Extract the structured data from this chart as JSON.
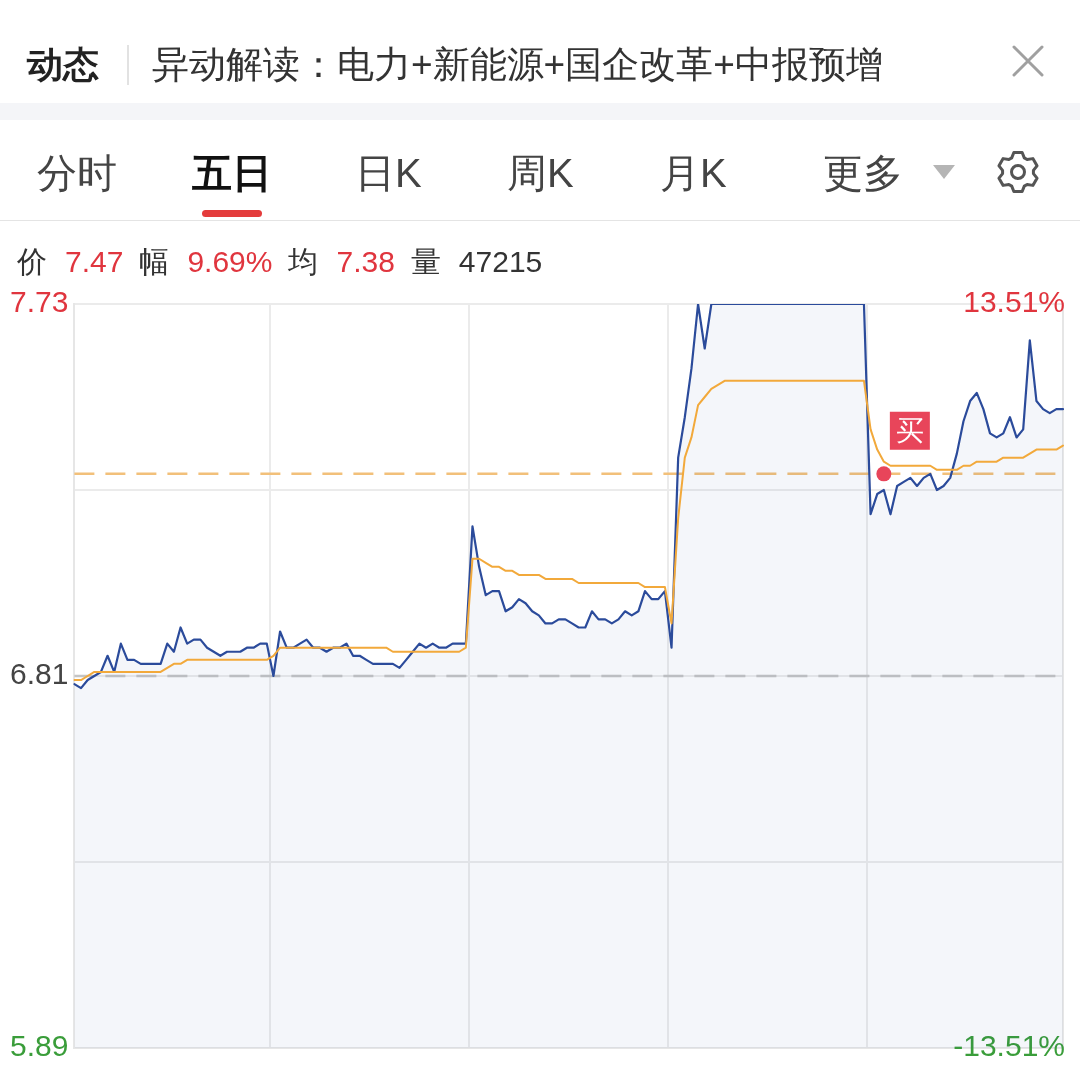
{
  "chart_data": {
    "type": "area",
    "title": "异动解读：电力+新能源+国企改革+中报预增",
    "annotations": [
      "动态",
      "分时",
      "五日",
      "日K",
      "周K",
      "月K",
      "更多",
      "价",
      "7.47",
      "幅",
      "9.69%",
      "均",
      "7.38",
      "量",
      "47215"
    ],
    "categories": [
      null,
      null,
      null,
      null,
      null,
      null,
      null,
      null,
      null,
      null,
      null,
      null,
      null,
      null,
      null,
      null,
      null,
      null,
      null,
      null,
      null,
      null,
      null,
      null,
      null,
      null,
      null,
      null,
      null,
      null,
      null,
      null,
      null,
      null,
      null,
      null,
      null,
      null,
      null,
      null,
      null,
      null,
      null,
      null,
      null,
      null,
      null,
      null,
      null,
      null,
      null,
      null,
      null,
      null,
      null,
      null,
      null,
      null,
      null,
      null,
      null,
      null,
      null,
      null,
      null,
      null,
      null,
      null,
      null,
      null,
      null,
      null,
      null,
      null,
      null,
      null,
      null,
      null,
      null,
      null,
      null,
      null,
      null,
      null,
      null,
      null,
      null,
      null,
      null,
      null,
      null,
      null,
      null,
      null,
      null,
      null,
      null,
      null,
      null,
      null,
      null,
      null,
      null,
      null,
      null,
      null,
      null,
      null,
      null,
      null,
      null,
      null,
      null,
      null,
      null,
      null,
      null,
      null,
      null,
      null,
      null,
      null,
      null,
      null,
      null,
      null,
      null,
      null,
      null,
      null,
      null,
      null,
      null,
      null,
      null,
      null,
      null,
      null,
      null,
      null,
      null,
      null,
      null,
      null,
      null,
      null,
      null,
      null,
      null,
      null
    ],
    "series": [
      {
        "color": "#2b4b9b",
        "values": [
          6.79,
          6.78,
          6.8,
          6.81,
          6.82,
          6.86,
          6.82,
          6.89,
          6.85,
          6.85,
          6.84,
          6.84,
          6.84,
          6.84,
          6.89,
          6.87,
          6.93,
          6.89,
          6.9,
          6.9,
          6.88,
          6.87,
          6.86,
          6.87,
          6.87,
          6.87,
          6.88,
          6.88,
          6.89,
          6.89,
          6.81,
          6.92,
          6.88,
          6.88,
          6.89,
          6.9,
          6.88,
          6.88,
          6.87,
          6.88,
          6.88,
          6.89,
          6.86,
          6.86,
          6.85,
          6.84,
          6.84,
          6.84,
          6.84,
          6.83,
          6.85,
          6.87,
          6.89,
          6.88,
          6.89,
          6.88,
          6.88,
          6.89,
          6.89,
          6.89,
          7.18,
          7.08,
          7.01,
          7.02,
          7.02,
          6.97,
          6.98,
          7.0,
          6.99,
          6.97,
          6.96,
          6.94,
          6.94,
          6.95,
          6.95,
          6.94,
          6.93,
          6.93,
          6.97,
          6.95,
          6.95,
          6.94,
          6.95,
          6.97,
          6.96,
          6.97,
          7.02,
          7.0,
          7.0,
          7.02,
          6.88,
          7.35,
          7.45,
          7.57,
          7.73,
          7.62,
          7.73,
          7.73,
          7.73,
          7.73,
          7.73,
          7.73,
          7.73,
          7.73,
          7.73,
          7.73,
          7.73,
          7.73,
          7.73,
          7.73,
          7.73,
          7.73,
          7.73,
          7.73,
          7.73,
          7.73,
          7.73,
          7.73,
          7.73,
          7.73,
          7.21,
          7.26,
          7.27,
          7.21,
          7.28,
          7.29,
          7.3,
          7.28,
          7.3,
          7.31,
          7.27,
          7.28,
          7.3,
          7.36,
          7.44,
          7.49,
          7.51,
          7.47,
          7.41,
          7.4,
          7.41,
          7.45,
          7.4,
          7.42,
          7.64,
          7.49,
          7.47,
          7.46,
          7.47,
          7.47
        ]
      },
      {
        "type": "line",
        "color": "#f2a93b",
        "values": [
          6.8,
          6.8,
          6.81,
          6.82,
          6.82,
          6.82,
          6.82,
          6.82,
          6.82,
          6.82,
          6.82,
          6.82,
          6.82,
          6.82,
          6.83,
          6.84,
          6.84,
          6.85,
          6.85,
          6.85,
          6.85,
          6.85,
          6.85,
          6.85,
          6.85,
          6.85,
          6.85,
          6.85,
          6.85,
          6.85,
          6.86,
          6.88,
          6.88,
          6.88,
          6.88,
          6.88,
          6.88,
          6.88,
          6.88,
          6.88,
          6.88,
          6.88,
          6.88,
          6.88,
          6.88,
          6.88,
          6.88,
          6.88,
          6.87,
          6.87,
          6.87,
          6.87,
          6.87,
          6.87,
          6.87,
          6.87,
          6.87,
          6.87,
          6.87,
          6.88,
          7.1,
          7.1,
          7.09,
          7.08,
          7.08,
          7.07,
          7.07,
          7.06,
          7.06,
          7.06,
          7.06,
          7.05,
          7.05,
          7.05,
          7.05,
          7.05,
          7.04,
          7.04,
          7.04,
          7.04,
          7.04,
          7.04,
          7.04,
          7.04,
          7.04,
          7.04,
          7.03,
          7.03,
          7.03,
          7.03,
          6.94,
          7.2,
          7.35,
          7.4,
          7.48,
          7.5,
          7.52,
          7.53,
          7.54,
          7.54,
          7.54,
          7.54,
          7.54,
          7.54,
          7.54,
          7.54,
          7.54,
          7.54,
          7.54,
          7.54,
          7.54,
          7.54,
          7.54,
          7.54,
          7.54,
          7.54,
          7.54,
          7.54,
          7.54,
          7.54,
          7.42,
          7.37,
          7.34,
          7.33,
          7.33,
          7.33,
          7.33,
          7.33,
          7.33,
          7.33,
          7.32,
          7.32,
          7.32,
          7.32,
          7.33,
          7.33,
          7.34,
          7.34,
          7.34,
          7.34,
          7.35,
          7.35,
          7.35,
          7.35,
          7.36,
          7.37,
          7.37,
          7.37,
          7.37,
          7.38
        ]
      },
      {
        "type": "scatter",
        "name": "买",
        "color": "#e8455a",
        "marker": "circle",
        "values": [
          null,
          null,
          null,
          null,
          null,
          null,
          null,
          null,
          null,
          null,
          null,
          null,
          null,
          null,
          null,
          null,
          null,
          null,
          null,
          null,
          null,
          null,
          null,
          null,
          null,
          null,
          null,
          null,
          null,
          null,
          null,
          null,
          null,
          null,
          null,
          null,
          null,
          null,
          null,
          null,
          null,
          null,
          null,
          null,
          null,
          null,
          null,
          null,
          null,
          null,
          null,
          null,
          null,
          null,
          null,
          null,
          null,
          null,
          null,
          null,
          null,
          null,
          null,
          null,
          null,
          null,
          null,
          null,
          null,
          null,
          null,
          null,
          null,
          null,
          null,
          null,
          null,
          null,
          null,
          null,
          null,
          null,
          null,
          null,
          null,
          null,
          null,
          null,
          null,
          null,
          null,
          null,
          null,
          null,
          null,
          null,
          null,
          null,
          null,
          null,
          null,
          null,
          null,
          null,
          null,
          null,
          null,
          null,
          null,
          null,
          null,
          null,
          null,
          null,
          null,
          null,
          null,
          null,
          null,
          null,
          null,
          null,
          7.31,
          null,
          null,
          null,
          null,
          null,
          null,
          null,
          null,
          null,
          null,
          null,
          null,
          null,
          null,
          null,
          null,
          null,
          null,
          null,
          null,
          null,
          null,
          null,
          null,
          null,
          null,
          null
        ]
      }
    ],
    "ylim": [
      5.89,
      7.73
    ],
    "yticks": [
      5.89,
      {
        "value": 6.35,
        "label": null
      },
      6.81,
      {
        "value": 7.27,
        "label": null
      },
      7.73
    ],
    "y2lim": [
      -13.51,
      13.51
    ],
    "y2ticks": [
      {
        "value": -13.51,
        "label": "-13.51%"
      },
      {
        "value": 13.51,
        "label": "13.51%"
      }
    ],
    "ref_lines": [
      {
        "axis": "y",
        "value": 6.81,
        "color": "#c4c4c4",
        "line_style": "dashed"
      },
      {
        "axis": "y",
        "value": 7.31,
        "color": "#f2c07a",
        "line_style": "dashed"
      }
    ],
    "grid": true,
    "legend": false,
    "marker": "none"
  }
}
